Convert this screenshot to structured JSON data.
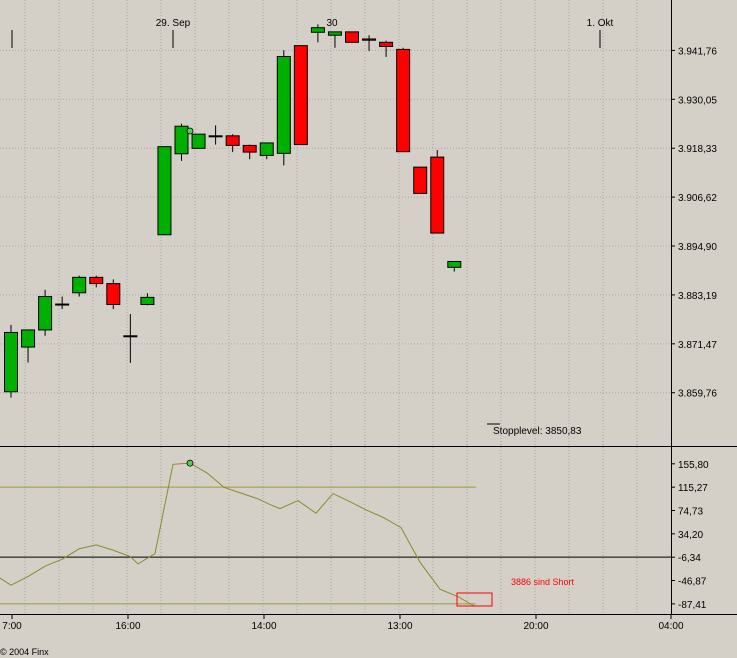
{
  "colors": {
    "background": "#d4d0c8",
    "grid": "#a8a8a8",
    "up": "#00b000",
    "down": "#ff0000",
    "osc_line": "#8b8b2a",
    "band": "#a09a35",
    "annotation": "#ff0000",
    "marker": "#50d050"
  },
  "date_labels": [
    "29. Sep",
    "30",
    "1. Okt"
  ],
  "time_labels": [
    "7:00",
    "16:00",
    "14:00",
    "13:00",
    "20:00",
    "04:00"
  ],
  "copyright": "© 2004 Finx",
  "price_axis": [
    "3.941,76",
    "3.930,05",
    "3.918,33",
    "3.906,62",
    "3.894,90",
    "3.883,19",
    "3.871,47",
    "3.859,76"
  ],
  "osc_axis": [
    "155,80",
    "115,27",
    "74,73",
    "34,20",
    "-6,34",
    "-46,87",
    "-87,41"
  ],
  "stop_label": "Stopplevel: 3850,83",
  "short_label": "3886 sind Short",
  "chart_data": [
    {
      "type": "candlestick",
      "ylim": [
        3847,
        3950
      ],
      "stop_level": 3850.83,
      "candles": [
        {
          "o": 3860.0,
          "h": 3876.0,
          "l": 3858.6,
          "c": 3874.2
        },
        {
          "o": 3870.7,
          "h": 3874.6,
          "l": 3867.0,
          "c": 3874.8
        },
        {
          "o": 3874.8,
          "h": 3884.4,
          "l": 3873.4,
          "c": 3882.8
        },
        {
          "o": 3881.0,
          "h": 3882.8,
          "l": 3879.8,
          "c": 3881.0
        },
        {
          "o": 3883.7,
          "h": 3887.8,
          "l": 3882.8,
          "c": 3887.4
        },
        {
          "o": 3887.4,
          "h": 3887.8,
          "l": 3885.0,
          "c": 3885.9
        },
        {
          "o": 3885.9,
          "h": 3886.9,
          "l": 3879.8,
          "c": 3880.9
        },
        {
          "o": 3873.4,
          "h": 3878.6,
          "l": 3866.9,
          "c": 3873.4
        },
        {
          "o": 3880.9,
          "h": 3883.6,
          "l": 3880.7,
          "c": 3882.6
        },
        {
          "o": 3897.6,
          "h": 3918.7,
          "l": 3897.6,
          "c": 3918.7
        },
        {
          "o": 3917.0,
          "h": 3924.2,
          "l": 3915.3,
          "c": 3923.6
        },
        {
          "o": 3918.3,
          "h": 3921.7,
          "l": 3918.3,
          "c": 3921.7
        },
        {
          "o": 3921.3,
          "h": 3923.8,
          "l": 3919.2,
          "c": 3921.3
        },
        {
          "o": 3921.3,
          "h": 3921.7,
          "l": 3917.4,
          "c": 3919.0
        },
        {
          "o": 3919.0,
          "h": 3919.2,
          "l": 3915.7,
          "c": 3917.4
        },
        {
          "o": 3916.6,
          "h": 3919.6,
          "l": 3915.7,
          "c": 3919.6
        },
        {
          "o": 3917.1,
          "h": 3941.8,
          "l": 3914.2,
          "c": 3940.3
        },
        {
          "o": 3942.9,
          "h": 3942.9,
          "l": 3919.2,
          "c": 3919.2
        },
        {
          "o": 3946.1,
          "h": 3948.0,
          "l": 3943.7,
          "c": 3947.2
        },
        {
          "o": 3945.4,
          "h": 3946.2,
          "l": 3942.4,
          "c": 3946.2
        },
        {
          "o": 3946.2,
          "h": 3946.2,
          "l": 3943.7,
          "c": 3943.7
        },
        {
          "o": 3944.5,
          "h": 3945.4,
          "l": 3941.6,
          "c": 3944.2
        },
        {
          "o": 3943.7,
          "h": 3944.1,
          "l": 3940.2,
          "c": 3942.7
        },
        {
          "o": 3942.0,
          "h": 3942.4,
          "l": 3917.5,
          "c": 3917.5
        },
        {
          "o": 3913.8,
          "h": 3913.8,
          "l": 3907.5,
          "c": 3907.5
        },
        {
          "o": 3916.2,
          "h": 3917.9,
          "l": 3898.0,
          "c": 3898.0
        },
        {
          "o": 3889.8,
          "h": 3891.2,
          "l": 3888.8,
          "c": 3891.2
        }
      ]
    },
    {
      "type": "line",
      "ylim": [
        -105,
        185
      ],
      "bands": [
        115.27,
        -87.41
      ],
      "zero_line": -6.34,
      "values": [
        -38,
        -55,
        -40,
        -22,
        -10,
        8,
        15,
        6,
        -5,
        -18,
        0,
        155,
        157,
        140,
        115,
        105,
        95,
        85,
        78,
        92,
        70,
        104,
        90,
        75,
        62,
        45,
        -15,
        -62,
        -75,
        -92
      ]
    }
  ]
}
